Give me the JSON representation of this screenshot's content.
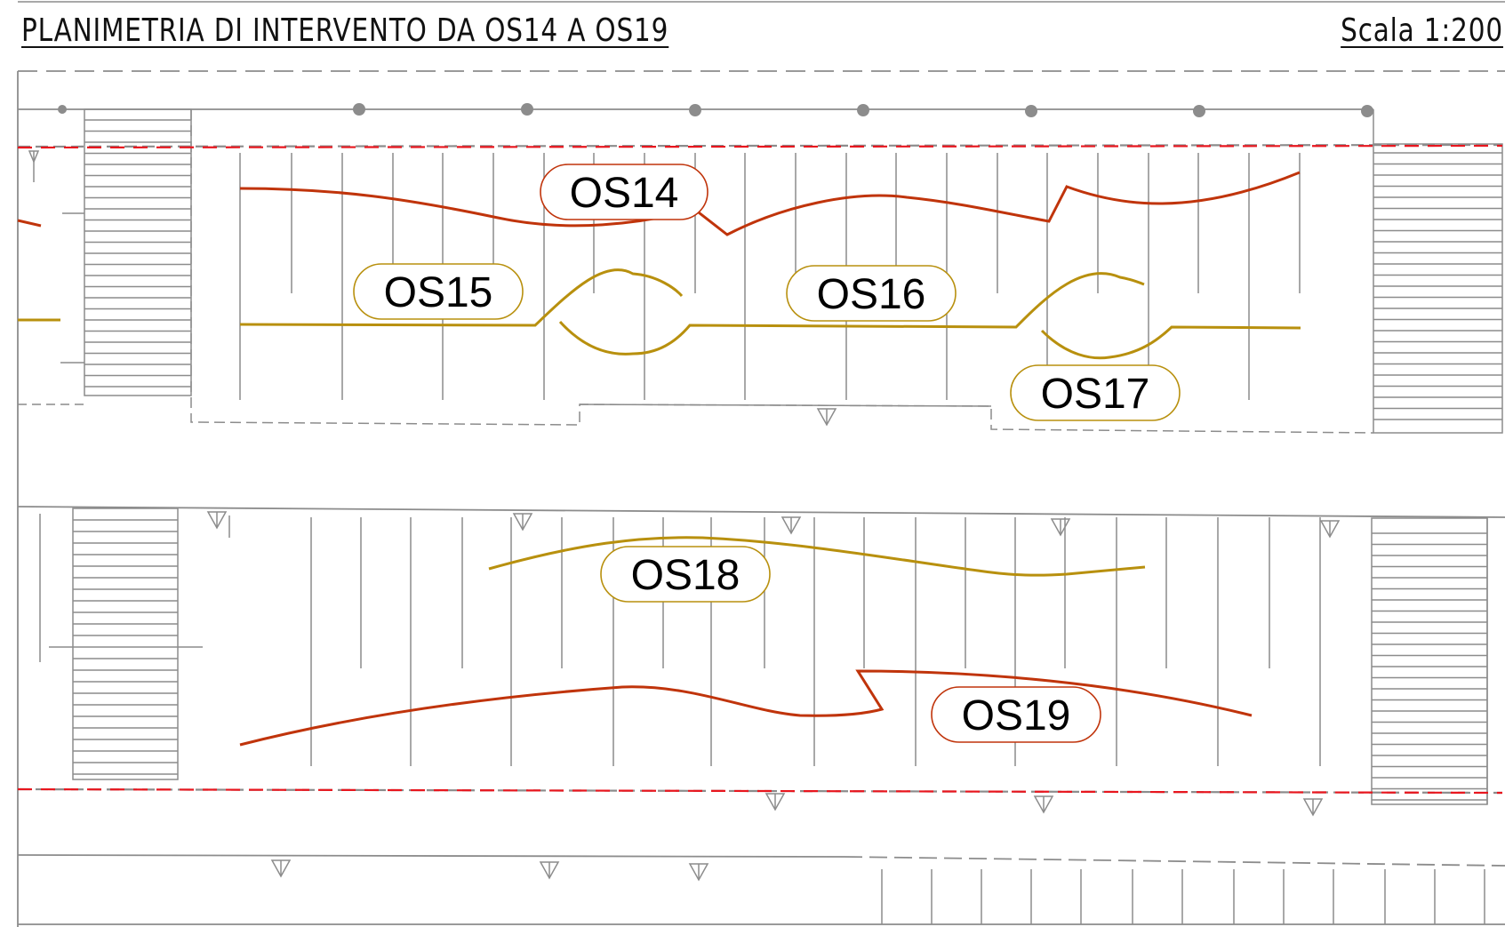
{
  "header": {
    "title": "PLANIMETRIA DI INTERVENTO DA OS14 A OS19",
    "scale": "Scala 1:200"
  },
  "colors": {
    "structure": "#8c8c8c",
    "red_trace": "#c0340b",
    "gold_trace": "#b8900e",
    "boundary": "#e8161e"
  },
  "labels": [
    {
      "id": "os14",
      "text": "OS14",
      "color": "#c0340b"
    },
    {
      "id": "os15",
      "text": "OS15",
      "color": "#b8900e"
    },
    {
      "id": "os16",
      "text": "OS16",
      "color": "#b8900e"
    },
    {
      "id": "os17",
      "text": "OS17",
      "color": "#b8900e"
    },
    {
      "id": "os18",
      "text": "OS18",
      "color": "#b8900e"
    },
    {
      "id": "os19",
      "text": "OS19",
      "color": "#c0340b"
    }
  ]
}
